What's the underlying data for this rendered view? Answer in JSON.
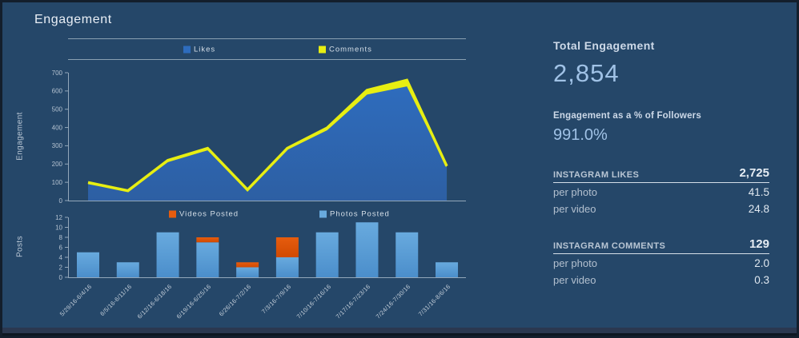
{
  "title": "Engagement",
  "colors": {
    "background": "#254769",
    "axis": "#93a7ba",
    "tick_text": "#b4c2d0",
    "likes_blue_top": "#2e6cbd",
    "likes_blue_bottom": "#2d5fa3",
    "comments_yellow": "#e7ee12",
    "photos_blue_top": "#68aade",
    "photos_blue_bottom": "#4b8ecb",
    "videos_orange_top": "#e65c0e",
    "videos_orange_bottom": "#d04a02",
    "value_text_blue": "#a0c2e6"
  },
  "chart_data": [
    {
      "type": "area",
      "stacked": true,
      "title": "",
      "categories": [
        "5/29/16-6/4/16",
        "6/5/16-6/11/16",
        "6/12/16-6/18/16",
        "6/19/16-6/25/16",
        "6/26/16-7/2/16",
        "7/3/16-7/9/16",
        "7/10/16-7/16/16",
        "7/17/16-7/23/16",
        "7/24/16-7/30/16",
        "7/31/16-8/6/16"
      ],
      "series": [
        {
          "name": "Likes",
          "color": "#2e6cbd",
          "color2": "#2d5fa3",
          "values": [
            90,
            48,
            210,
            275,
            52,
            278,
            385,
            580,
            625,
            182
          ]
        },
        {
          "name": "Comments",
          "color": "#e7ee12",
          "color2": "#e7ee12",
          "values": [
            9,
            6,
            10,
            11,
            7,
            8,
            13,
            24,
            34,
            7
          ]
        }
      ],
      "xlabel": "",
      "ylabel": "Engagement",
      "ylim": [
        0,
        700
      ],
      "ytick_step": 100,
      "grid": false,
      "legend_position": "top"
    },
    {
      "type": "bar",
      "stacked": true,
      "title": "",
      "categories": [
        "5/29/16-6/4/16",
        "6/5/16-6/11/16",
        "6/12/16-6/18/16",
        "6/19/16-6/25/16",
        "6/26/16-7/2/16",
        "7/3/16-7/9/16",
        "7/10/16-7/16/16",
        "7/17/16-7/23/16",
        "7/24/16-7/30/16",
        "7/31/16-8/6/16"
      ],
      "series": [
        {
          "name": "Videos Posted",
          "color": "#e65c0e",
          "color2": "#d04a02",
          "values": [
            0,
            0,
            0,
            1,
            1,
            4,
            0,
            0,
            0,
            0
          ]
        },
        {
          "name": "Photos Posted",
          "color": "#68aade",
          "color2": "#4b8ecb",
          "values": [
            5,
            3,
            9,
            7,
            2,
            4,
            9,
            11,
            9,
            3
          ]
        }
      ],
      "xlabel": "",
      "ylabel": "Posts",
      "ylim": [
        0,
        12
      ],
      "ytick_step": 2,
      "grid": false,
      "legend_position": "top"
    }
  ],
  "panel": {
    "total_engagement_label": "Total Engagement",
    "total_engagement_value": "2,854",
    "pct_label": "Engagement as a % of Followers",
    "pct_value": "991.0%",
    "sections": [
      {
        "header": "INSTAGRAM LIKES",
        "total": "2,725",
        "rows": [
          {
            "label": "per photo",
            "value": "41.5"
          },
          {
            "label": "per video",
            "value": "24.8"
          }
        ]
      },
      {
        "header": "INSTAGRAM COMMENTS",
        "total": "129",
        "rows": [
          {
            "label": "per photo",
            "value": "2.0"
          },
          {
            "label": "per video",
            "value": "0.3"
          }
        ]
      }
    ]
  }
}
